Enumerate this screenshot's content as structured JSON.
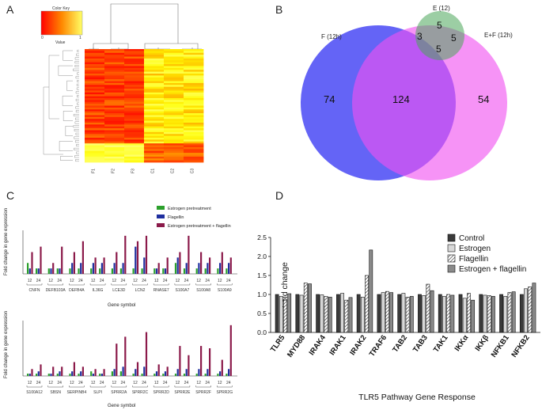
{
  "panels": {
    "a": {
      "letter": "A",
      "color_key_title": "Color Key",
      "color_key_ticks": [
        "0",
        "1"
      ],
      "color_key_axis": "Value",
      "column_labels": [
        "F1",
        "F2",
        "F3",
        "C1",
        "C2",
        "C3"
      ]
    },
    "b": {
      "letter": "B",
      "sets": [
        {
          "name": "F (12h)",
          "color": "#5c5cf5"
        },
        {
          "name": "E (12)",
          "color": "#4aa55a"
        },
        {
          "name": "E+F (12h)",
          "color": "#f050f0"
        }
      ],
      "regions": {
        "f_only": "74",
        "f_ef": "124",
        "ef_only": "54",
        "e_only": "5",
        "e_f": "3",
        "e_ef": "5",
        "e_f_ef": "5"
      }
    },
    "c": {
      "letter": "C",
      "ylabel": "Fold change in gene expression",
      "xlabel": "Gene symbol",
      "time_labels": [
        "12",
        "24"
      ],
      "colors": {
        "Estrogen pretreatment": "#2ca02c",
        "Flagellin": "#1f2f9f",
        "Estrogen pretreatment + flagellin": "#8b1a4a"
      }
    },
    "d": {
      "letter": "D",
      "colors": {
        "Control": "#3a3a3a",
        "Estrogen": "#d8d8d8",
        "Flagellin": "#ffffff",
        "Estrogen + flagellin": "#8a8a8a"
      }
    }
  },
  "chart_data": [
    {
      "id": "C-top",
      "type": "bar",
      "title": "",
      "xlabel": "Gene symbol",
      "ylabel": "Fold change in gene expression",
      "legend": [
        "Estrogen pretreatment",
        "Flagellin",
        "Estrogen pretreatment + flagellin"
      ],
      "groups": [
        "CNFN",
        "DEFB103A",
        "DEFB4A",
        "IL36G",
        "LCE3D",
        "LCN2",
        "RNASE7",
        "S100A7",
        "S100A8",
        "S100A9"
      ],
      "timepoints": [
        "12",
        "24"
      ],
      "series": [
        {
          "name": "Estrogen pretreatment",
          "values": [
            [
              2,
              1
            ],
            [
              1,
              1
            ],
            [
              1,
              1
            ],
            [
              1,
              1
            ],
            [
              1,
              1
            ],
            [
              1,
              1
            ],
            [
              1,
              1
            ],
            [
              2,
              1
            ],
            [
              1,
              1
            ],
            [
              1,
              1
            ]
          ]
        },
        {
          "name": "Flagellin",
          "values": [
            [
              1,
              1
            ],
            [
              1,
              1
            ],
            [
              2,
              2
            ],
            [
              2,
              2
            ],
            [
              2,
              2
            ],
            [
              5,
              3
            ],
            [
              1,
              1
            ],
            [
              3,
              2
            ],
            [
              2,
              2
            ],
            [
              2,
              2
            ]
          ]
        },
        {
          "name": "Estrogen pretreatment + flagellin",
          "values": [
            [
              4,
              5
            ],
            [
              2,
              5
            ],
            [
              4,
              6
            ],
            [
              3,
              3
            ],
            [
              4,
              7
            ],
            [
              6,
              7
            ],
            [
              2,
              3
            ],
            [
              4,
              7
            ],
            [
              4,
              3
            ],
            [
              4,
              3
            ]
          ]
        }
      ],
      "ylim": [
        0,
        8
      ]
    },
    {
      "id": "C-bottom",
      "type": "bar",
      "title": "",
      "xlabel": "Gene symbol",
      "ylabel": "Fold change in gene expression",
      "groups": [
        "S100A12",
        "SBSN",
        "SERPINB4",
        "SLPI",
        "SPRR2A",
        "SPRR2C",
        "SPRR2D",
        "SPRR2E",
        "SPRR2F",
        "SPRR2G"
      ],
      "timepoints": [
        "12",
        "24"
      ],
      "series": [
        {
          "name": "Estrogen pretreatment",
          "values": [
            [
              1,
              1
            ],
            [
              1,
              1
            ],
            [
              1,
              1
            ],
            [
              2,
              1
            ],
            [
              2,
              2
            ],
            [
              1,
              1
            ],
            [
              1,
              1
            ],
            [
              1,
              1
            ],
            [
              1,
              1
            ],
            [
              1,
              1
            ]
          ]
        },
        {
          "name": "Flagellin",
          "values": [
            [
              1,
              2
            ],
            [
              1,
              2
            ],
            [
              2,
              2
            ],
            [
              1,
              1
            ],
            [
              3,
              4
            ],
            [
              3,
              4
            ],
            [
              2,
              2
            ],
            [
              3,
              3
            ],
            [
              3,
              3
            ],
            [
              2,
              3
            ]
          ]
        },
        {
          "name": "Estrogen pretreatment + flagellin",
          "values": [
            [
              3,
              5
            ],
            [
              4,
              4
            ],
            [
              6,
              4
            ],
            [
              3,
              3
            ],
            [
              14,
              17
            ],
            [
              6,
              19
            ],
            [
              5,
              4
            ],
            [
              13,
              9
            ],
            [
              13,
              12
            ],
            [
              7,
              22
            ]
          ]
        }
      ],
      "ylim": [
        0,
        24
      ]
    },
    {
      "id": "D",
      "type": "bar",
      "title": "",
      "xlabel": "TLR5 Pathway Gene Response",
      "ylabel": "Fold change",
      "ylim": [
        0.0,
        2.5
      ],
      "yticks": [
        "0.0",
        "0.5",
        "1.0",
        "1.5",
        "2.0",
        "2.5"
      ],
      "legend_position": "top-right",
      "categories": [
        "TLR5",
        "MYD88",
        "IRAK4",
        "IRAK1",
        "IRAK2",
        "TRAF6",
        "TAB2",
        "TAB3",
        "TAK1",
        "IKKα",
        "IKKβ",
        "NFKB1",
        "NFKB2"
      ],
      "series": [
        {
          "name": "Control",
          "values": [
            1.0,
            1.0,
            1.0,
            1.0,
            1.0,
            1.0,
            1.0,
            1.0,
            1.0,
            1.0,
            1.0,
            1.0,
            1.0
          ]
        },
        {
          "name": "Estrogen",
          "values": [
            0.95,
            0.98,
            0.99,
            1.03,
            0.93,
            1.05,
            1.03,
            0.97,
            0.95,
            0.9,
            0.98,
            0.95,
            1.15
          ]
        },
        {
          "name": "Flagellin",
          "values": [
            0.85,
            1.3,
            0.95,
            0.85,
            1.5,
            1.08,
            0.93,
            1.27,
            1.0,
            1.03,
            0.97,
            1.05,
            1.2
          ]
        },
        {
          "name": "Estrogen + flagellin",
          "values": [
            1.02,
            1.28,
            0.93,
            0.92,
            2.17,
            1.05,
            0.95,
            1.1,
            0.98,
            0.85,
            0.95,
            1.07,
            1.3
          ]
        }
      ]
    }
  ]
}
